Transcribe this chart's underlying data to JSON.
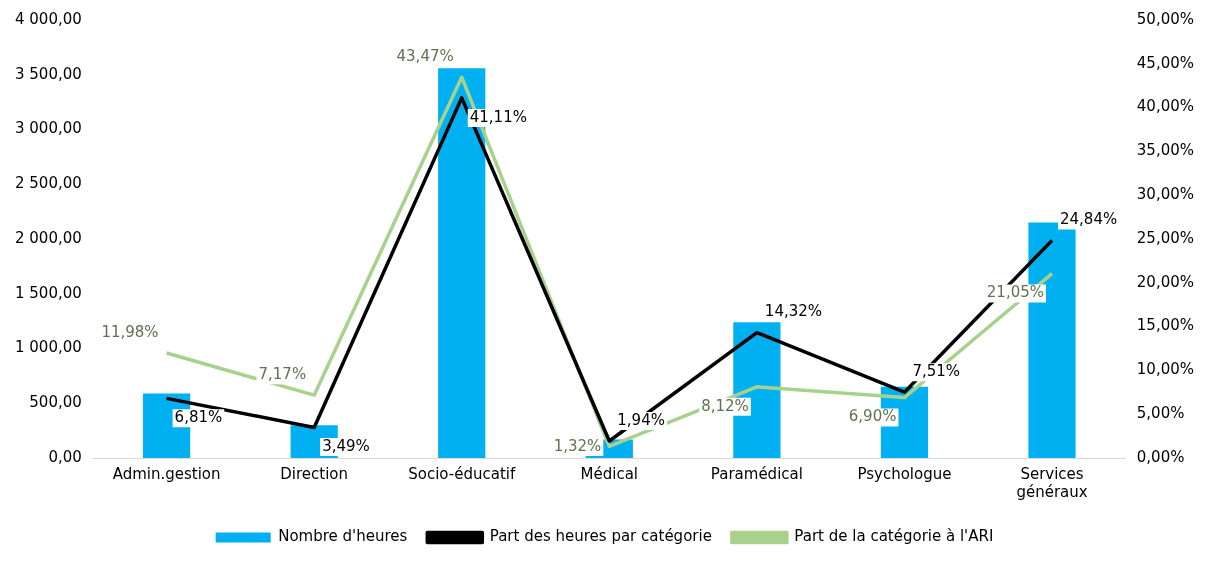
{
  "chart_data": {
    "type": "bar",
    "categories": [
      "Admin.gestion",
      "Direction",
      "Socio-éducatif",
      "Médical",
      "Paramédical",
      "Psychologue",
      "Services généraux"
    ],
    "series": [
      {
        "name": "Nombre d'heures",
        "color": "#00b0f0",
        "values": [
          590,
          300,
          3560,
          170,
          1240,
          650,
          2150
        ]
      },
      {
        "name": "Part des heures par catégorie",
        "type": "line",
        "axis": "y2",
        "color": "#000000",
        "values": [
          6.81,
          3.49,
          41.11,
          1.94,
          14.32,
          7.51,
          24.84
        ],
        "value_labels": [
          "6,81%",
          "3,49%",
          "41,11%",
          "1,94%",
          "14,32%",
          "7,51%",
          "24,84%"
        ]
      },
      {
        "name": "Part de la catégorie à l'ARI",
        "type": "line",
        "axis": "y2",
        "color": "#a9d18e",
        "values": [
          11.98,
          7.17,
          43.47,
          1.32,
          8.12,
          6.9,
          21.05
        ],
        "value_labels": [
          "11,98%",
          "7,17%",
          "43,47%",
          "1,32%",
          "8,12%",
          "6,90%",
          "21,05%"
        ]
      }
    ],
    "ylim": [
      0,
      4000
    ],
    "yticks": [
      {
        "value": 0,
        "label": "0,00"
      },
      {
        "value": 500,
        "label": "500,00"
      },
      {
        "value": 1000,
        "label": "1 000,00"
      },
      {
        "value": 1500,
        "label": "1 500,00"
      },
      {
        "value": 2000,
        "label": "2 000,00"
      },
      {
        "value": 2500,
        "label": "2 500,00"
      },
      {
        "value": 3000,
        "label": "3 000,00"
      },
      {
        "value": 3500,
        "label": "3 500,00"
      },
      {
        "value": 4000,
        "label": "4 000,00"
      }
    ],
    "y2lim": [
      0,
      50
    ],
    "y2ticks": [
      {
        "value": 0,
        "label": "0,00%"
      },
      {
        "value": 5,
        "label": "5,00%"
      },
      {
        "value": 10,
        "label": "10,00%"
      },
      {
        "value": 15,
        "label": "15,00%"
      },
      {
        "value": 20,
        "label": "20,00%"
      },
      {
        "value": 25,
        "label": "25,00%"
      },
      {
        "value": 30,
        "label": "30,00%"
      },
      {
        "value": 35,
        "label": "35,00%"
      },
      {
        "value": 40,
        "label": "40,00%"
      },
      {
        "value": 45,
        "label": "45,00%"
      },
      {
        "value": 50,
        "label": "50,00%"
      }
    ],
    "grid": false,
    "legend": "bottom",
    "marker": "none",
    "line_style": "solid"
  }
}
